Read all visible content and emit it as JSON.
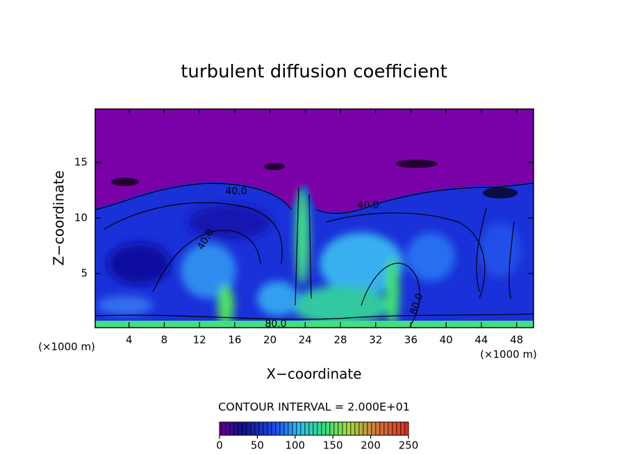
{
  "chart_data": {
    "type": "contour",
    "title": "turbulent diffusion coefficient",
    "xlabel": "X−coordinate",
    "ylabel": "Z−coordinate",
    "x_unit_labels": [
      "(×1000 m)",
      "(×1000 m)"
    ],
    "xlim": [
      0,
      50
    ],
    "xticks": [
      4,
      8,
      12,
      16,
      20,
      24,
      28,
      32,
      36,
      40,
      44,
      48
    ],
    "ylim": [
      0,
      20
    ],
    "yticks": [
      5,
      10,
      15
    ],
    "contour_labels": {
      "values": [
        40,
        40,
        40,
        80,
        80
      ],
      "value_labels": [
        "40.0",
        "40.0",
        "40.0",
        "80.0",
        "80.0"
      ]
    },
    "contour_interval": "CONTOUR INTERVAL = 2.000E+01",
    "colorbar": {
      "lim": [
        0,
        250
      ],
      "ticks": [
        0,
        50,
        100,
        150,
        200,
        250
      ]
    }
  }
}
